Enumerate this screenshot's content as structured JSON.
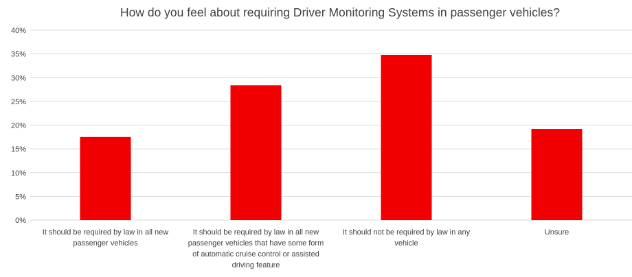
{
  "chart_data": {
    "type": "bar",
    "title": "How do you feel about requiring Driver Monitoring Systems in passenger vehicles?",
    "xlabel": "",
    "ylabel": "",
    "ylim": [
      0,
      40
    ],
    "yticks": [
      "0%",
      "5%",
      "10%",
      "15%",
      "20%",
      "25%",
      "30%",
      "35%",
      "40%"
    ],
    "grid": true,
    "legend": "none",
    "bar_color": "#f00000",
    "categories": [
      [
        "It should be required by law in all new",
        "passenger vehicles"
      ],
      [
        "It should be required by law in all new",
        "passenger vehicles that have some form",
        "of automatic cruise control or assisted",
        "driving feature"
      ],
      [
        "It should not be required by law in any",
        "vehicle"
      ],
      [
        "Unsure"
      ]
    ],
    "values": [
      17.5,
      28.4,
      34.8,
      19.2
    ]
  }
}
